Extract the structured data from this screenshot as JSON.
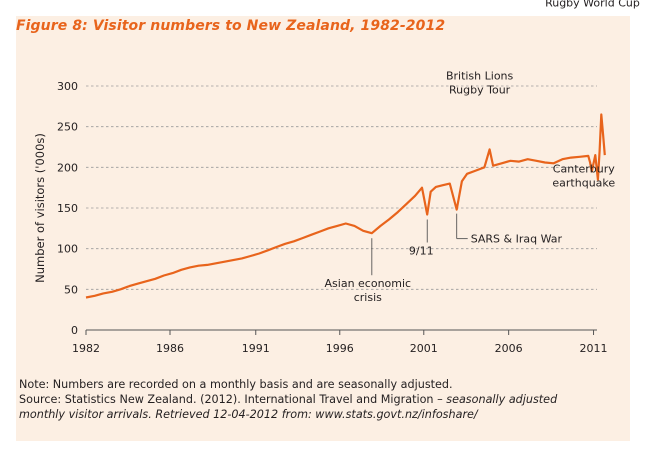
{
  "colors": {
    "background": "#fcefe3",
    "title": "#e8641c",
    "line": "#e8641c",
    "text": "#231f20",
    "grid": "#9a9a9a"
  },
  "figure_title": "Figure 8: Visitor numbers to New Zealand, 1982-2012",
  "footer": {
    "note": "Note: Numbers are recorded on a monthly basis and are seasonally adjusted.",
    "source_plain": "Source: Statistics New Zealand. (2012). International Travel and Migration –",
    "source_italic_1": "seasonally adjusted",
    "source_italic_2": "monthly visitor arrivals. Retrieved 12-04-2012 from: www.stats.govt.nz/infoshare/"
  },
  "chart_data": {
    "type": "line",
    "title": "Figure 8: Visitor numbers to New Zealand, 1982-2012",
    "xlabel": "",
    "ylabel": "Number of visitors ('000s)",
    "xlim": [
      1982,
      2011.5
    ],
    "ylim": [
      0,
      300
    ],
    "yticks": [
      0,
      50,
      100,
      150,
      200,
      250,
      300
    ],
    "xticks": [
      {
        "label": "1982",
        "value": 1982
      },
      {
        "label": "1986",
        "value": 1986.85
      },
      {
        "label": "1991",
        "value": 1991.8
      },
      {
        "label": "1996",
        "value": 1996.65
      },
      {
        "label": "2001",
        "value": 2001.5
      },
      {
        "label": "2006",
        "value": 2006.4
      },
      {
        "label": "2011",
        "value": 2011.3
      }
    ],
    "grid": "horizontal dashed",
    "series": [
      {
        "name": "Monthly visitor arrivals (seasonally adjusted)",
        "x": [
          1982.0,
          1982.5,
          1983.0,
          1983.5,
          1984.0,
          1984.5,
          1985.0,
          1985.5,
          1986.0,
          1986.5,
          1987.0,
          1987.5,
          1988.0,
          1988.5,
          1989.0,
          1989.5,
          1990.0,
          1990.5,
          1991.0,
          1991.5,
          1992.0,
          1992.5,
          1993.0,
          1993.5,
          1994.0,
          1994.5,
          1995.0,
          1995.5,
          1996.0,
          1996.5,
          1997.0,
          1997.5,
          1998.0,
          1998.5,
          1999.0,
          1999.5,
          2000.0,
          2000.5,
          2001.0,
          2001.4,
          2001.7,
          2001.9,
          2002.2,
          2002.6,
          2003.0,
          2003.25,
          2003.4,
          2003.7,
          2004.0,
          2004.5,
          2005.0,
          2005.3,
          2005.5,
          2006.0,
          2006.5,
          2007.0,
          2007.5,
          2008.0,
          2008.5,
          2009.0,
          2009.5,
          2010.0,
          2010.5,
          2011.0,
          2011.1,
          2011.2,
          2011.4,
          2011.55,
          2011.65,
          2011.75,
          2011.85,
          2011.95
        ],
        "values": [
          40,
          42,
          45,
          47,
          50,
          54,
          57,
          60,
          63,
          67,
          70,
          74,
          77,
          79,
          80,
          82,
          84,
          86,
          88,
          91,
          94,
          98,
          102,
          106,
          109,
          113,
          117,
          121,
          125,
          128,
          131,
          128,
          122,
          119,
          128,
          136,
          145,
          155,
          165,
          175,
          142,
          170,
          176,
          178,
          180,
          160,
          148,
          183,
          192,
          196,
          200,
          222,
          202,
          205,
          208,
          207,
          210,
          208,
          206,
          205,
          210,
          212,
          213,
          214,
          206,
          195,
          215,
          185,
          220,
          265,
          240,
          215
        ]
      }
    ],
    "annotations": [
      {
        "text": "Rugby World Cup",
        "lines": [
          "Rugby World Cup"
        ],
        "x": 2011.7,
        "y": 265
      },
      {
        "text": "British Lions Rugby Tour",
        "lines": [
          "British Lions",
          "Rugby Tour"
        ],
        "x": 2005.3,
        "y": 222
      },
      {
        "text": "Canterbury earthquake",
        "lines": [
          "Canterbury",
          "earthquake"
        ],
        "x": 2011.2,
        "y": 195
      },
      {
        "text": "9/11",
        "lines": [
          "9/11"
        ],
        "x": 2001.7,
        "y": 142
      },
      {
        "text": "SARS & Iraq War",
        "lines": [
          "SARS & Iraq War"
        ],
        "x": 2003.4,
        "y": 148
      },
      {
        "text": "Asian economic crisis",
        "lines": [
          "Asian economic",
          "crisis"
        ],
        "x": 1998.5,
        "y": 119
      }
    ]
  }
}
